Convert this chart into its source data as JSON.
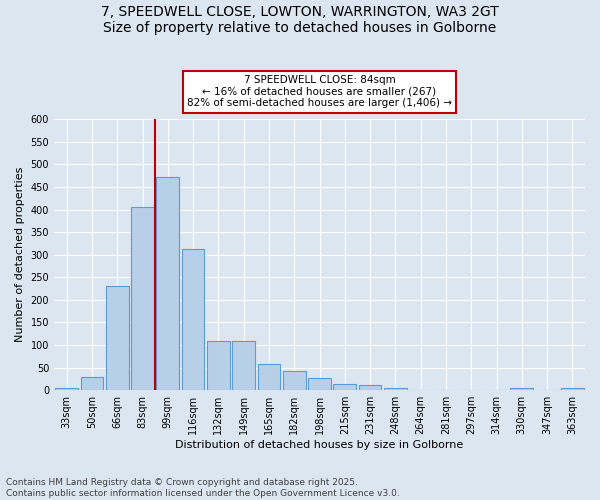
{
  "title_line1": "7, SPEEDWELL CLOSE, LOWTON, WARRINGTON, WA3 2GT",
  "title_line2": "Size of property relative to detached houses in Golborne",
  "xlabel": "Distribution of detached houses by size in Golborne",
  "ylabel": "Number of detached properties",
  "categories": [
    "33sqm",
    "50sqm",
    "66sqm",
    "83sqm",
    "99sqm",
    "116sqm",
    "132sqm",
    "149sqm",
    "165sqm",
    "182sqm",
    "198sqm",
    "215sqm",
    "231sqm",
    "248sqm",
    "264sqm",
    "281sqm",
    "297sqm",
    "314sqm",
    "330sqm",
    "347sqm",
    "363sqm"
  ],
  "values": [
    5,
    30,
    230,
    405,
    473,
    312,
    110,
    110,
    57,
    43,
    26,
    14,
    12,
    5,
    0,
    0,
    0,
    0,
    4,
    0,
    4
  ],
  "bar_color": "#b8cfe8",
  "bar_edge_color": "#5b9bd5",
  "vline_x": 3.5,
  "vline_color": "#c00000",
  "annotation_text": "7 SPEEDWELL CLOSE: 84sqm\n← 16% of detached houses are smaller (267)\n82% of semi-detached houses are larger (1,406) →",
  "annotation_box_color": "#ffffff",
  "annotation_box_edge": "#c00000",
  "ylim": [
    0,
    600
  ],
  "yticks": [
    0,
    50,
    100,
    150,
    200,
    250,
    300,
    350,
    400,
    450,
    500,
    550,
    600
  ],
  "bg_color": "#dce6f1",
  "plot_bg_color": "#dce6f1",
  "footer_text": "Contains HM Land Registry data © Crown copyright and database right 2025.\nContains public sector information licensed under the Open Government Licence v3.0.",
  "title_fontsize": 10,
  "axis_label_fontsize": 8,
  "tick_fontsize": 7,
  "footer_fontsize": 6.5
}
